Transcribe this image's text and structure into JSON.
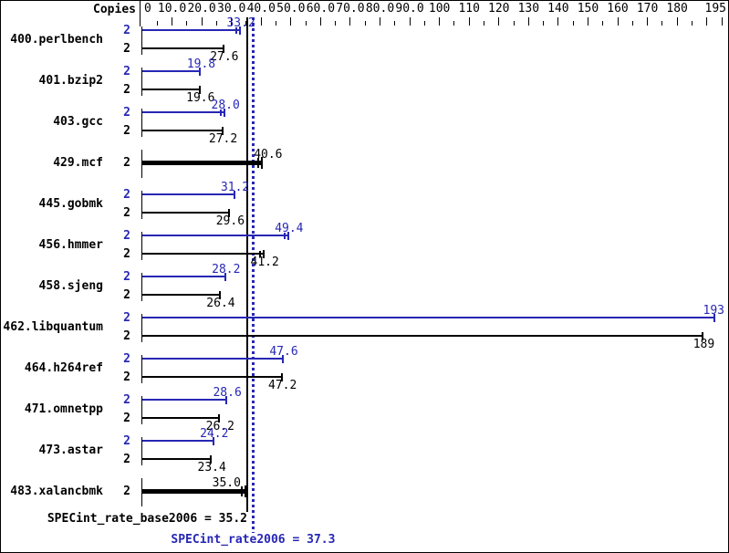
{
  "copies_header": "Copies",
  "summary": {
    "base_text": "SPECint_rate_base2006 = 35.2",
    "peak_text": "SPECint_rate2006 = 37.3"
  },
  "colors": {
    "peak": "#2727b5",
    "base": "#000000"
  },
  "chart_data": {
    "type": "bar",
    "orientation": "horizontal",
    "title": "",
    "xlabel": "",
    "ylabel": "Copies",
    "xlim": [
      0,
      195
    ],
    "major_tick_step": 10,
    "minor_tick_step": 5,
    "grid": false,
    "axis_tick_labels": [
      {
        "v": 0,
        "t": "0"
      },
      {
        "v": 10,
        "t": "10.0"
      },
      {
        "v": 20,
        "t": "20.0"
      },
      {
        "v": 30,
        "t": "30.0"
      },
      {
        "v": 40,
        "t": "40.0"
      },
      {
        "v": 50,
        "t": "50.0"
      },
      {
        "v": 60,
        "t": "60.0"
      },
      {
        "v": 70,
        "t": "70.0"
      },
      {
        "v": 80,
        "t": "80.0"
      },
      {
        "v": 90,
        "t": "90.0"
      },
      {
        "v": 100,
        "t": "100"
      },
      {
        "v": 110,
        "t": "110"
      },
      {
        "v": 120,
        "t": "120"
      },
      {
        "v": 130,
        "t": "130"
      },
      {
        "v": 140,
        "t": "140"
      },
      {
        "v": 150,
        "t": "150"
      },
      {
        "v": 160,
        "t": "160"
      },
      {
        "v": 170,
        "t": "170"
      },
      {
        "v": 180,
        "t": "180"
      },
      {
        "v": 195,
        "t": "195"
      }
    ],
    "categories": [
      "400.perlbench",
      "401.bzip2",
      "403.gcc",
      "429.mcf",
      "445.gobmk",
      "456.hmmer",
      "458.sjeng",
      "462.libquantum",
      "464.h264ref",
      "471.omnetpp",
      "473.astar",
      "483.xalancbmk"
    ],
    "series": [
      {
        "name": "SPECint_rate2006 (peak)",
        "color": "#2727b5",
        "values": [
          33.2,
          19.8,
          28.0,
          40.6,
          31.2,
          49.4,
          28.2,
          193,
          47.6,
          28.6,
          24.2,
          35.0
        ]
      },
      {
        "name": "SPECint_rate_base2006 (base)",
        "color": "#000000",
        "values": [
          27.6,
          19.6,
          27.2,
          40.6,
          29.6,
          41.2,
          26.4,
          189,
          47.2,
          26.2,
          23.4,
          35.0
        ]
      }
    ],
    "benchmarks": [
      {
        "name": "400.perlbench",
        "copies": 2,
        "bars": [
          {
            "series": "peak",
            "value": 33.2,
            "label": "33.2",
            "cap": "double"
          },
          {
            "series": "base",
            "value": 27.6,
            "label": "27.6",
            "cap": "single"
          }
        ]
      },
      {
        "name": "401.bzip2",
        "copies": 2,
        "bars": [
          {
            "series": "peak",
            "value": 19.8,
            "label": "19.8",
            "cap": "single"
          },
          {
            "series": "base",
            "value": 19.6,
            "label": "19.6",
            "cap": "single"
          }
        ]
      },
      {
        "name": "403.gcc",
        "copies": 2,
        "bars": [
          {
            "series": "peak",
            "value": 28.0,
            "label": "28.0",
            "cap": "double"
          },
          {
            "series": "base",
            "value": 27.2,
            "label": "27.2",
            "cap": "single"
          }
        ]
      },
      {
        "name": "429.mcf",
        "copies": 2,
        "bars": [
          {
            "series": "both",
            "value": 40.6,
            "label": "40.6",
            "cap": "double"
          }
        ]
      },
      {
        "name": "445.gobmk",
        "copies": 2,
        "bars": [
          {
            "series": "peak",
            "value": 31.2,
            "label": "31.2",
            "cap": "single"
          },
          {
            "series": "base",
            "value": 29.6,
            "label": "29.6",
            "cap": "single"
          }
        ]
      },
      {
        "name": "456.hmmer",
        "copies": 2,
        "bars": [
          {
            "series": "peak",
            "value": 49.4,
            "label": "49.4",
            "cap": "double"
          },
          {
            "series": "base",
            "value": 41.2,
            "label": "41.2",
            "cap": "double"
          }
        ]
      },
      {
        "name": "458.sjeng",
        "copies": 2,
        "bars": [
          {
            "series": "peak",
            "value": 28.2,
            "label": "28.2",
            "cap": "single"
          },
          {
            "series": "base",
            "value": 26.4,
            "label": "26.4",
            "cap": "single"
          }
        ]
      },
      {
        "name": "462.libquantum",
        "copies": 2,
        "bars": [
          {
            "series": "peak",
            "value": 193,
            "label": "193",
            "cap": "single"
          },
          {
            "series": "base",
            "value": 189,
            "label": "189",
            "cap": "single"
          }
        ]
      },
      {
        "name": "464.h264ref",
        "copies": 2,
        "bars": [
          {
            "series": "peak",
            "value": 47.6,
            "label": "47.6",
            "cap": "single"
          },
          {
            "series": "base",
            "value": 47.2,
            "label": "47.2",
            "cap": "single"
          }
        ]
      },
      {
        "name": "471.omnetpp",
        "copies": 2,
        "bars": [
          {
            "series": "peak",
            "value": 28.6,
            "label": "28.6",
            "cap": "single"
          },
          {
            "series": "base",
            "value": 26.2,
            "label": "26.2",
            "cap": "single"
          }
        ]
      },
      {
        "name": "473.astar",
        "copies": 2,
        "bars": [
          {
            "series": "peak",
            "value": 24.2,
            "label": "24.2",
            "cap": "single"
          },
          {
            "series": "base",
            "value": 23.4,
            "label": "23.4",
            "cap": "single"
          }
        ]
      },
      {
        "name": "483.xalancbmk",
        "copies": 2,
        "bars": [
          {
            "series": "both",
            "value": 35.0,
            "label": "35.0",
            "cap": "double"
          }
        ]
      }
    ],
    "reference_lines": [
      {
        "label": "SPECint_rate_base2006 = 35.2",
        "value": 35.2,
        "style": "solid",
        "color": "#000000"
      },
      {
        "label": "SPECint_rate2006 = 37.3",
        "value": 37.3,
        "style": "dotted",
        "color": "#2727b5"
      }
    ],
    "legend_position": "none"
  }
}
